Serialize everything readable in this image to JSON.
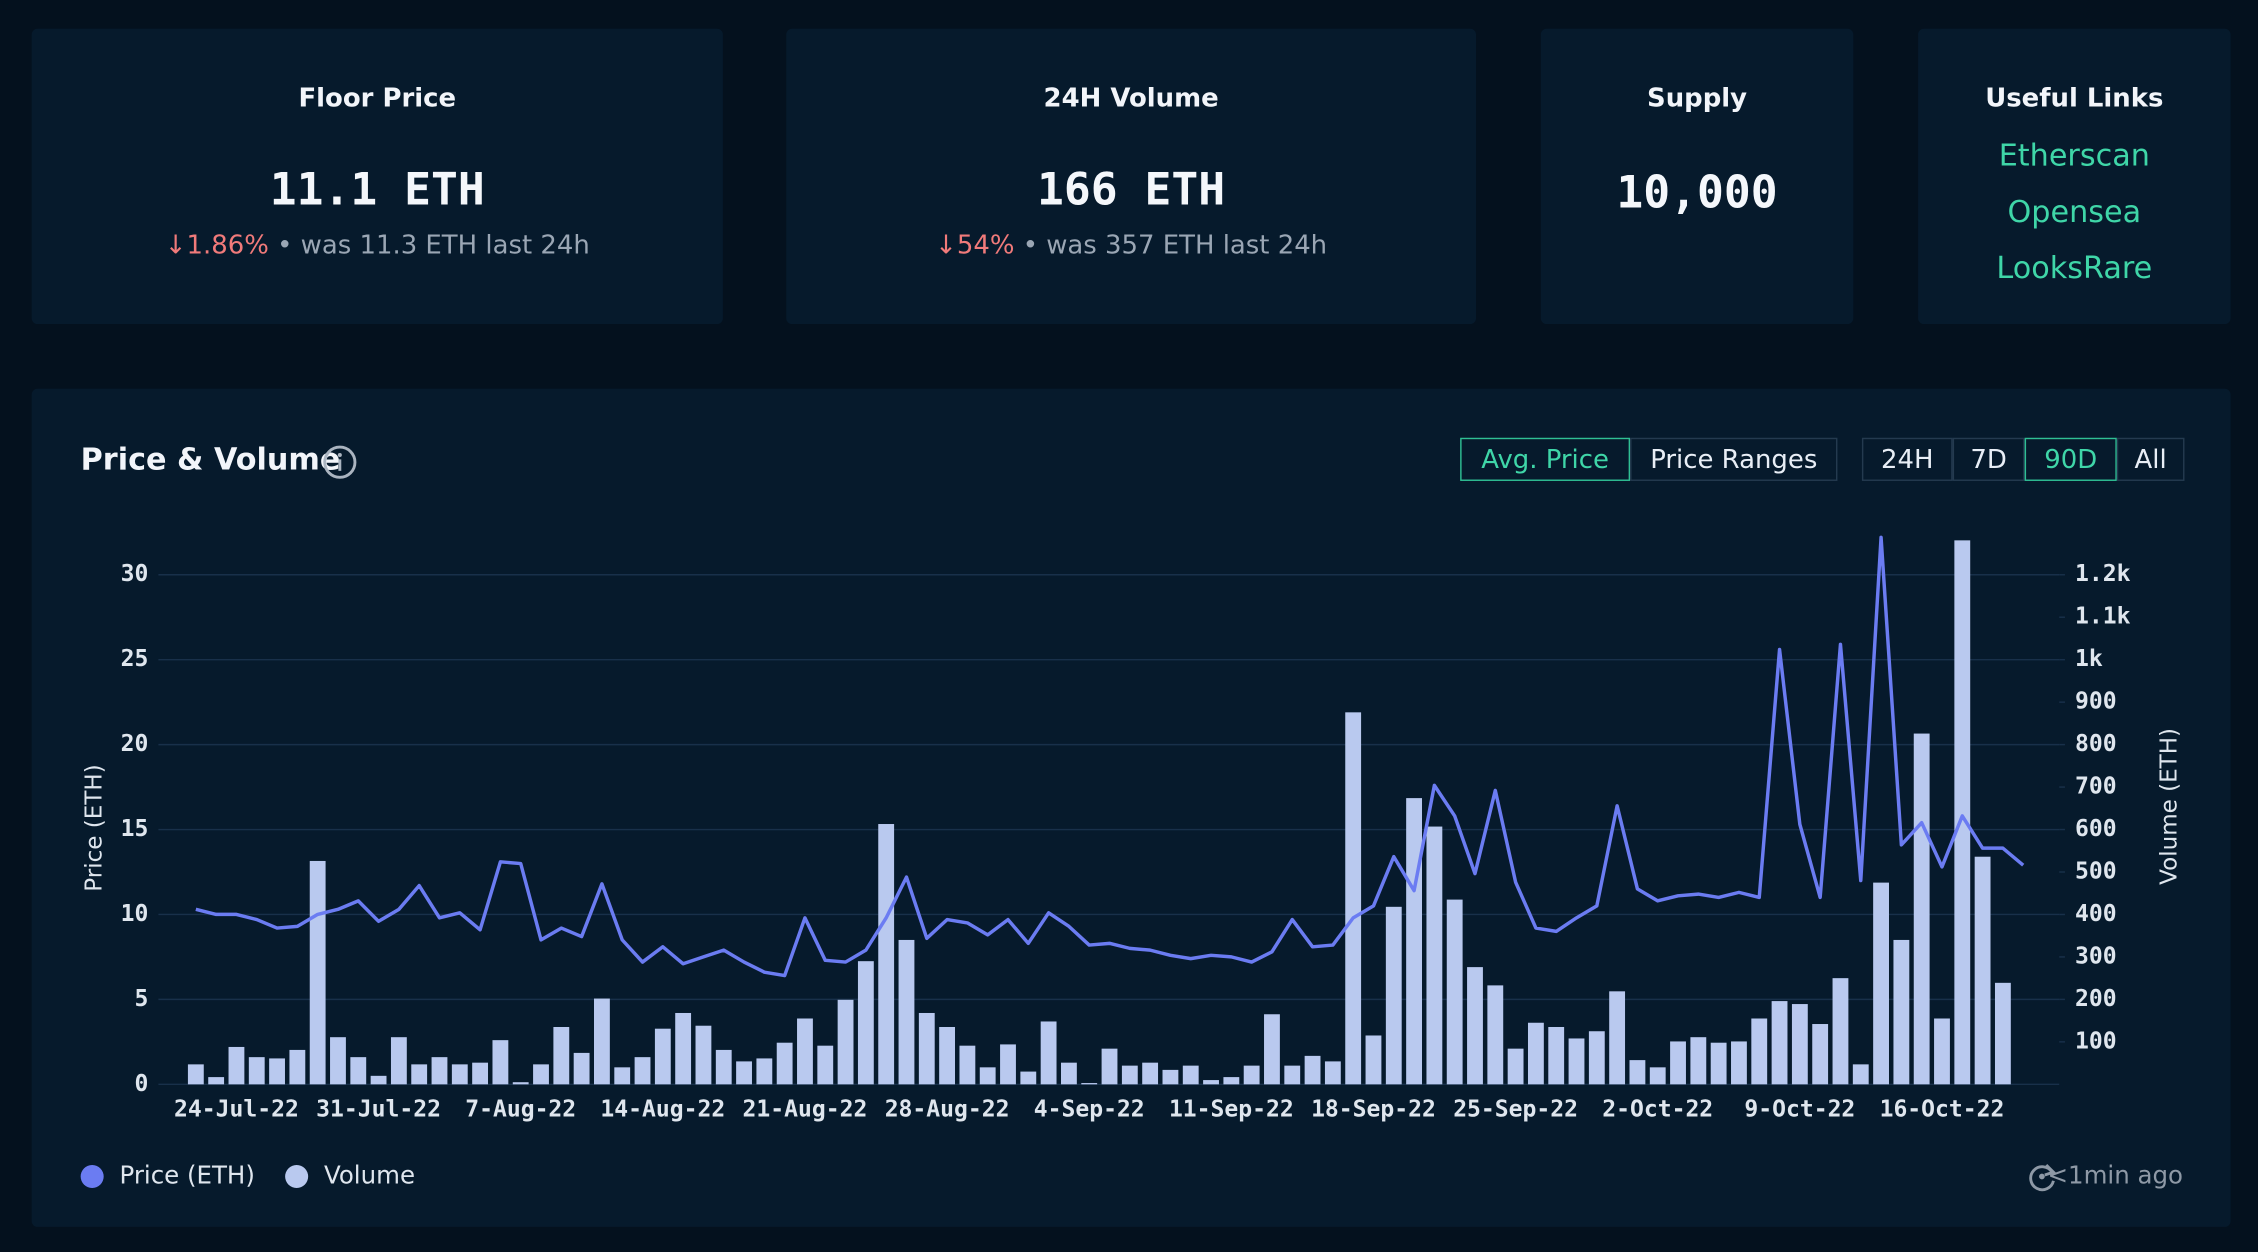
{
  "stats": [
    {
      "title": "Floor Price",
      "value": "11.1 ETH",
      "change": "1.86%",
      "note": "was 11.3 ETH last 24h"
    },
    {
      "title": "24H Volume",
      "value": "166 ETH",
      "change": "54%",
      "note": "was 357 ETH last 24h"
    },
    {
      "title": "Supply",
      "value": "10,000"
    }
  ],
  "links": {
    "title": "Useful Links",
    "items": [
      "Etherscan",
      "Opensea",
      "LooksRare"
    ]
  },
  "panel": {
    "title": "Price & Volume",
    "modes": [
      "Avg. Price",
      "Price Ranges"
    ],
    "active_mode": "Avg. Price",
    "ranges": [
      "24H",
      "7D",
      "90D",
      "All"
    ],
    "active_range": "90D",
    "updated": "<1min ago"
  },
  "chart_data": {
    "type": "combo",
    "y_label": "Price (ETH)",
    "y2_label": "Volume (ETH)",
    "categories": [
      null,
      null,
      "24-Jul-22",
      null,
      null,
      null,
      null,
      null,
      null,
      "31-Jul-22",
      null,
      null,
      null,
      null,
      null,
      null,
      "7-Aug-22",
      null,
      null,
      null,
      null,
      null,
      null,
      "14-Aug-22",
      null,
      null,
      null,
      null,
      null,
      null,
      "21-Aug-22",
      null,
      null,
      null,
      null,
      null,
      null,
      "28-Aug-22",
      null,
      null,
      null,
      null,
      null,
      null,
      "4-Sep-22",
      null,
      null,
      null,
      null,
      null,
      null,
      "11-Sep-22",
      null,
      null,
      null,
      null,
      null,
      null,
      "18-Sep-22",
      null,
      null,
      null,
      null,
      null,
      null,
      "25-Sep-22",
      null,
      null,
      null,
      null,
      null,
      null,
      "2-Oct-22",
      null,
      null,
      null,
      null,
      null,
      null,
      "9-Oct-22",
      null,
      null,
      null,
      null,
      null,
      null,
      "16-Oct-22",
      null,
      null,
      null,
      null
    ],
    "series": [
      {
        "name": "Price (ETH)",
        "type": "line",
        "color": "#6b7cf2",
        "values": [
          10.3,
          10.0,
          10.0,
          9.7,
          9.2,
          9.3,
          10.0,
          10.3,
          10.8,
          9.6,
          10.3,
          11.7,
          9.8,
          10.1,
          9.1,
          13.1,
          13.0,
          8.5,
          9.2,
          8.7,
          11.8,
          8.5,
          7.2,
          8.1,
          7.1,
          7.5,
          7.9,
          7.2,
          6.6,
          6.4,
          9.8,
          7.3,
          7.2,
          7.9,
          9.8,
          12.2,
          8.6,
          9.7,
          9.5,
          8.8,
          9.7,
          8.3,
          10.1,
          9.3,
          8.2,
          8.3,
          8.0,
          7.9,
          7.6,
          7.4,
          7.6,
          7.5,
          7.2,
          7.8,
          9.7,
          8.1,
          8.2,
          9.8,
          10.5,
          13.4,
          11.4,
          17.6,
          15.8,
          12.4,
          17.3,
          11.9,
          9.2,
          9.0,
          9.8,
          10.5,
          16.4,
          11.5,
          10.8,
          11.1,
          11.2,
          11.0,
          11.3,
          11.0,
          25.6,
          15.3,
          11.0,
          25.9,
          12.0,
          32.2,
          14.1,
          15.4,
          12.8,
          15.8,
          13.9,
          13.9,
          12.9
        ]
      },
      {
        "name": "Volume",
        "type": "bar",
        "axis": "y2",
        "color": "#b9c9ef",
        "values": [
          47,
          17,
          88,
          64,
          61,
          81,
          526,
          111,
          64,
          20,
          111,
          47,
          64,
          47,
          51,
          104,
          5,
          47,
          135,
          74,
          202,
          40,
          64,
          131,
          168,
          138,
          81,
          54,
          61,
          98,
          155,
          91,
          199,
          290,
          613,
          340,
          168,
          135,
          91,
          40,
          94,
          30,
          148,
          51,
          3,
          84,
          44,
          51,
          34,
          44,
          10,
          17,
          44,
          165,
          44,
          67,
          54,
          876,
          115,
          418,
          674,
          607,
          435,
          276,
          233,
          84,
          145,
          135,
          108,
          125,
          219,
          57,
          40,
          101,
          111,
          98,
          101,
          155,
          196,
          189,
          142,
          250,
          47,
          475,
          340,
          826,
          155,
          1281,
          536,
          239,
          null
        ]
      }
    ],
    "ylim": [
      0,
      32.3
    ],
    "yticks": [
      0,
      5,
      10,
      15,
      20,
      25,
      30
    ],
    "y2lim": [
      0,
      1292
    ],
    "y2ticks": [
      100,
      200,
      300,
      400,
      500,
      600,
      700,
      800,
      900,
      {
        "value": 1000,
        "label": "1k"
      },
      {
        "value": 1100,
        "label": "1.1k"
      },
      {
        "value": 1200,
        "label": "1.2k"
      }
    ],
    "grid": true,
    "legend": "bottom-left"
  }
}
